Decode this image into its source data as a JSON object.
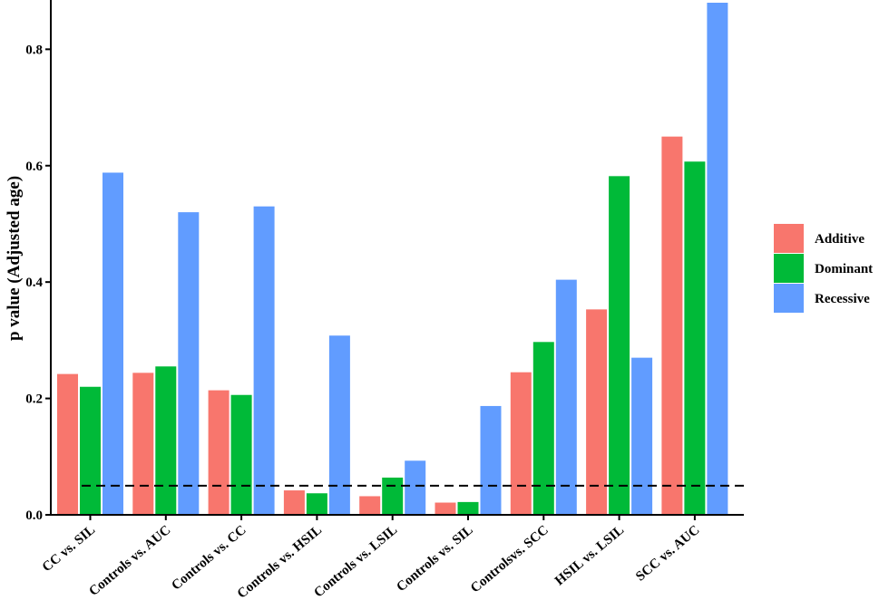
{
  "chart_data": {
    "type": "bar",
    "ylabel": "p value (Adjusted age)",
    "xlabel": "",
    "title": "",
    "ylim": [
      0,
      0.88
    ],
    "yticks": [
      0.0,
      0.2,
      0.4,
      0.6,
      0.8
    ],
    "ytick_labels": [
      "0.0",
      "0.2",
      "0.4",
      "0.6",
      "0.8"
    ],
    "categories": [
      "CC vs. SIL",
      "Controls vs. AUC",
      "Controls vs. CC",
      "Controls vs. HSIL",
      "Controls vs. LSIL",
      "Controls vs. SIL",
      "Controlsvs. SCC",
      "HSIL vs. LSIL",
      "SCC vs. AUC"
    ],
    "series": [
      {
        "name": "Additive",
        "color": "#F8766D",
        "values": [
          0.242,
          0.244,
          0.214,
          0.042,
          0.032,
          0.021,
          0.245,
          0.353,
          0.65
        ]
      },
      {
        "name": "Dominant",
        "color": "#00BA38",
        "values": [
          0.22,
          0.255,
          0.206,
          0.037,
          0.064,
          0.022,
          0.297,
          0.582,
          0.607
        ]
      },
      {
        "name": "Recessive",
        "color": "#619CFF",
        "values": [
          0.588,
          0.52,
          0.53,
          0.308,
          0.093,
          0.187,
          0.404,
          0.27,
          0.88
        ]
      }
    ],
    "reference_line": {
      "value": 0.05,
      "style": "dashed"
    },
    "legend_position": "right",
    "grid": false
  }
}
